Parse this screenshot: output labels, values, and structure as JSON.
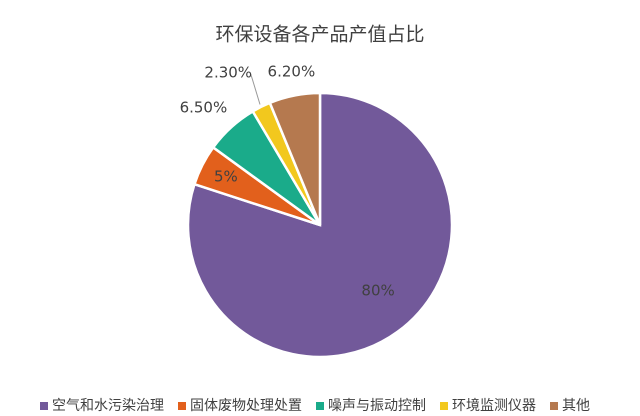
{
  "chart_data": {
    "type": "pie",
    "title": "环保设备各产品产值占比",
    "categories": [
      "空气和水污染治理",
      "固体废物处理处置",
      "噪声与振动控制",
      "环境监测仪器",
      "其他"
    ],
    "values": [
      80,
      5,
      6.5,
      2.3,
      6.2
    ],
    "value_labels": [
      "80%",
      "5%",
      "6.50%",
      "2.30%",
      "6.20%"
    ],
    "colors": [
      "#72599a",
      "#e2601c",
      "#1aab8a",
      "#f2c81e",
      "#b5794f"
    ],
    "legend": "bottom"
  }
}
